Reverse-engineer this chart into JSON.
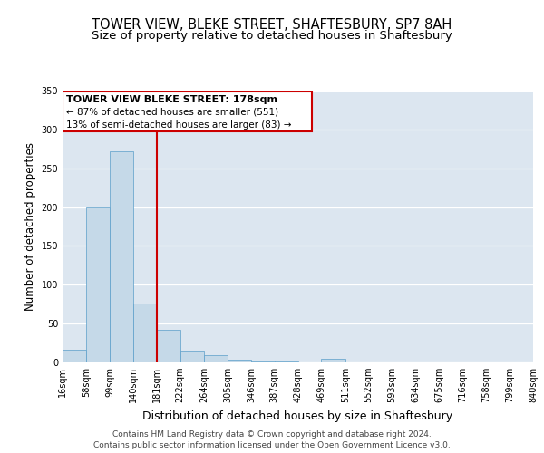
{
  "title": "TOWER VIEW, BLEKE STREET, SHAFTESBURY, SP7 8AH",
  "subtitle": "Size of property relative to detached houses in Shaftesbury",
  "xlabel": "Distribution of detached houses by size in Shaftesbury",
  "ylabel": "Number of detached properties",
  "bin_edges": [
    16,
    58,
    99,
    140,
    181,
    222,
    264,
    305,
    346,
    387,
    428,
    469,
    511,
    552,
    593,
    634,
    675,
    716,
    758,
    799,
    840
  ],
  "bin_labels": [
    "16sqm",
    "58sqm",
    "99sqm",
    "140sqm",
    "181sqm",
    "222sqm",
    "264sqm",
    "305sqm",
    "346sqm",
    "387sqm",
    "428sqm",
    "469sqm",
    "511sqm",
    "552sqm",
    "593sqm",
    "634sqm",
    "675sqm",
    "716sqm",
    "758sqm",
    "799sqm",
    "840sqm"
  ],
  "counts": [
    16,
    199,
    272,
    76,
    42,
    15,
    9,
    4,
    1,
    1,
    0,
    5,
    0,
    0,
    0,
    0,
    0,
    0,
    0,
    0,
    2
  ],
  "bar_color": "#c5d9e8",
  "bar_edge_color": "#5a9ec9",
  "vline_x": 181,
  "vline_color": "#cc0000",
  "annotation_title": "TOWER VIEW BLEKE STREET: 178sqm",
  "annotation_line1": "← 87% of detached houses are smaller (551)",
  "annotation_line2": "13% of semi-detached houses are larger (83) →",
  "annotation_box_color": "#cc0000",
  "ylim": [
    0,
    350
  ],
  "yticks": [
    0,
    50,
    100,
    150,
    200,
    250,
    300,
    350
  ],
  "plot_bg_color": "#dce6f0",
  "footer_line1": "Contains HM Land Registry data © Crown copyright and database right 2024.",
  "footer_line2": "Contains public sector information licensed under the Open Government Licence v3.0.",
  "title_fontsize": 10.5,
  "subtitle_fontsize": 9.5,
  "xlabel_fontsize": 9,
  "ylabel_fontsize": 8.5,
  "tick_fontsize": 7,
  "footer_fontsize": 6.5,
  "ann_title_fontsize": 8,
  "ann_text_fontsize": 7.5
}
